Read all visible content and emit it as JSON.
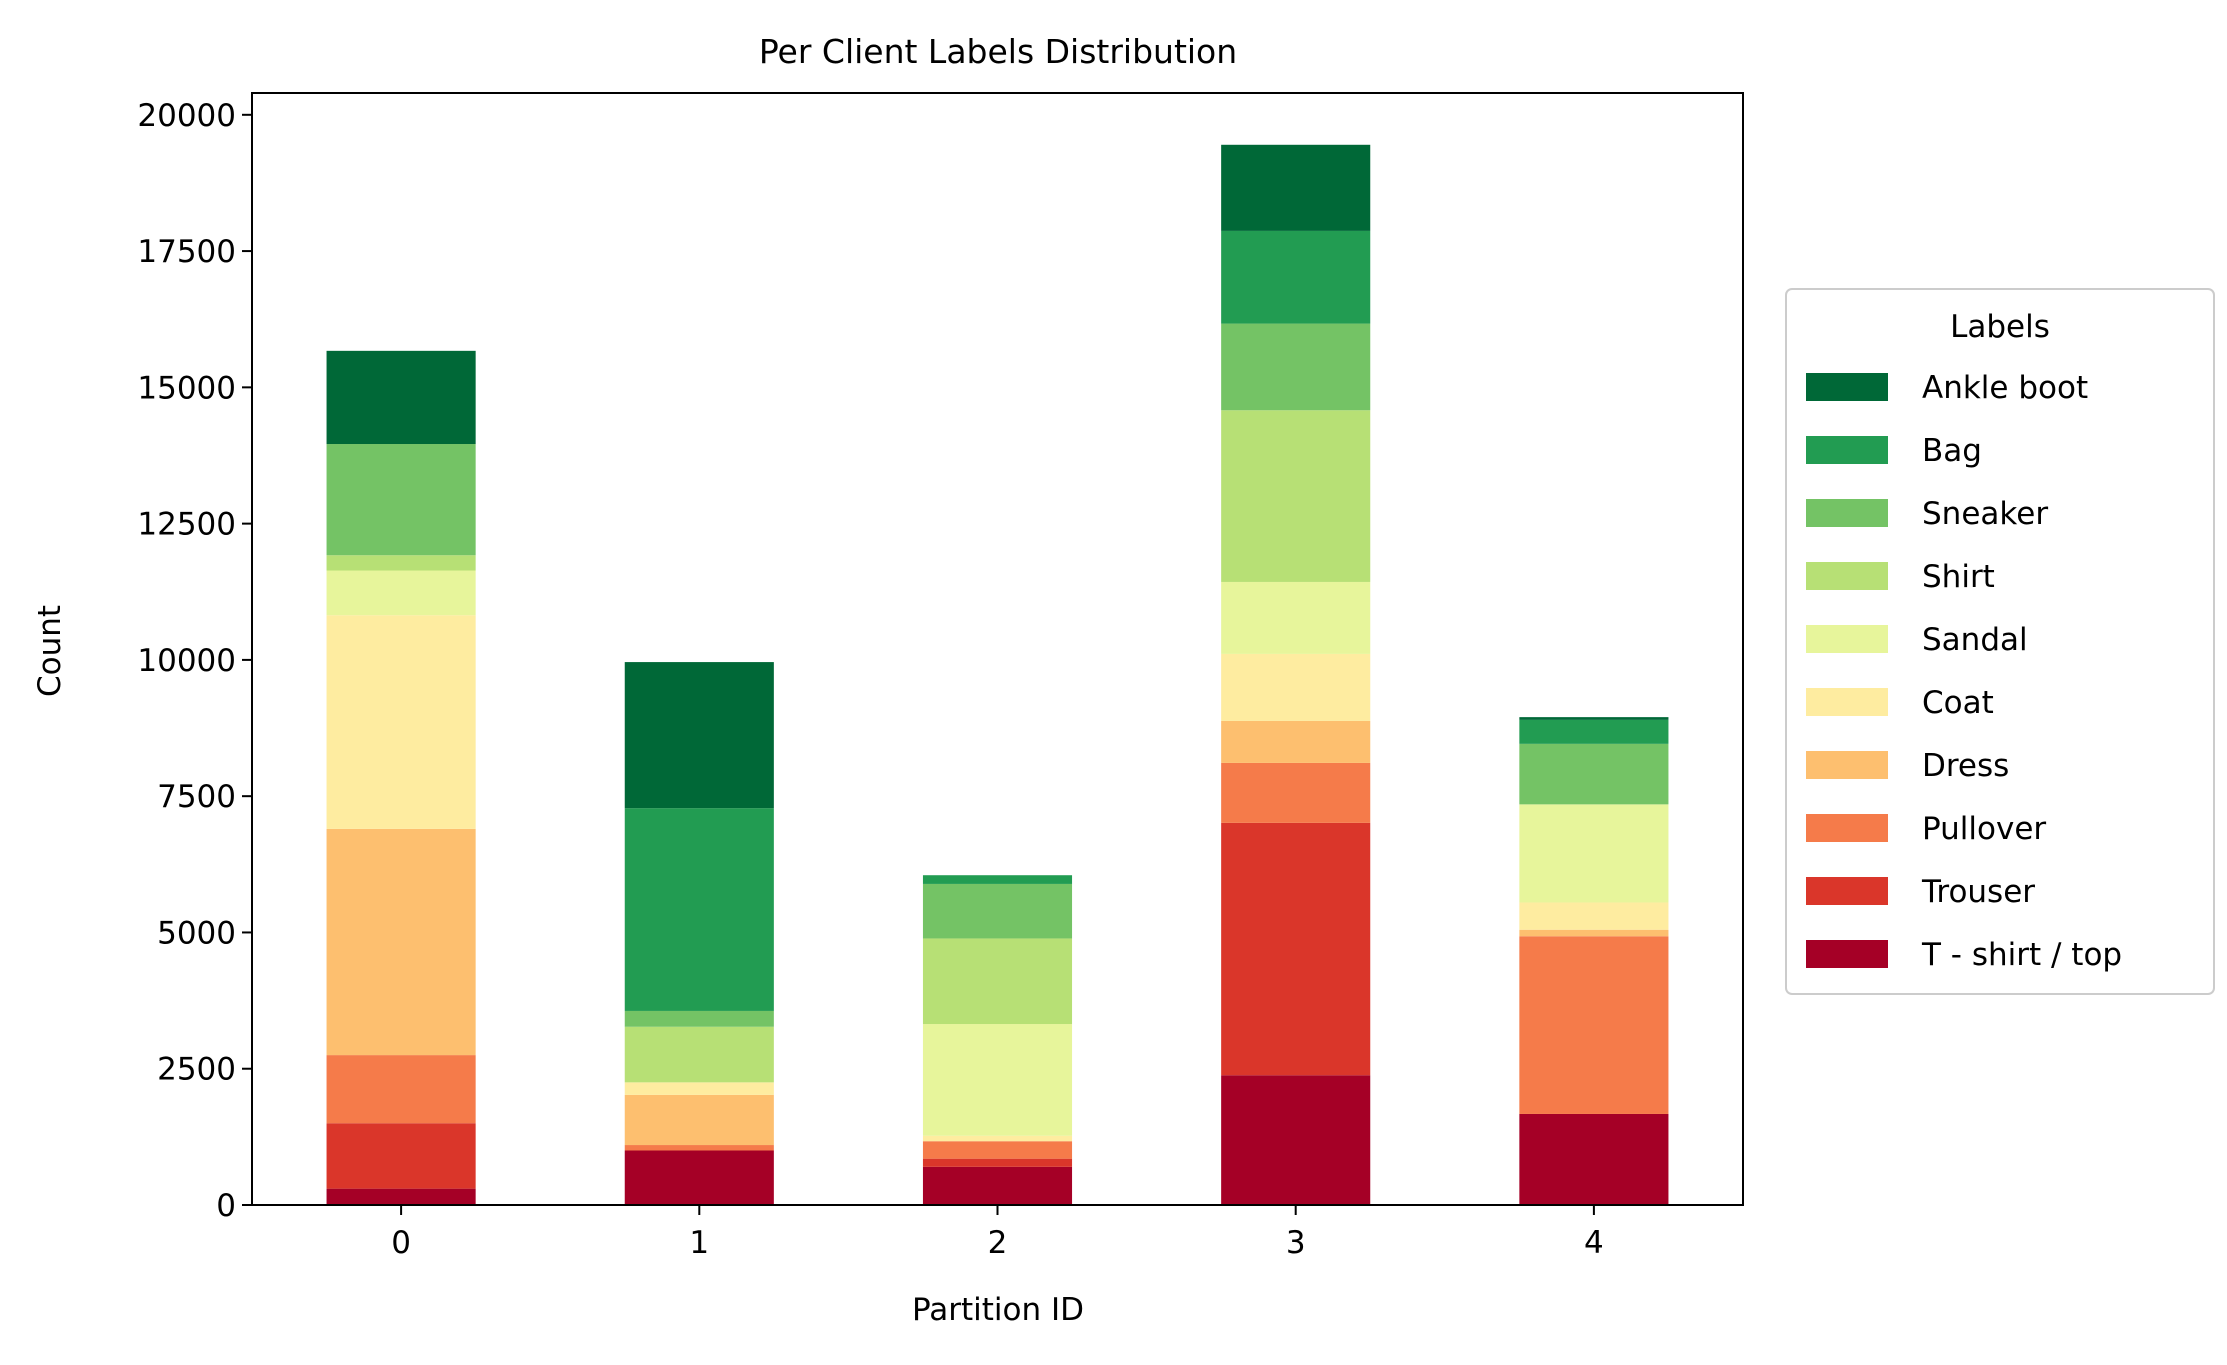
{
  "chart_data": {
    "type": "bar",
    "stacked": true,
    "title": "Per Client Labels Distribution",
    "xlabel": "Partition ID",
    "ylabel": "Count",
    "categories": [
      "0",
      "1",
      "2",
      "3",
      "4"
    ],
    "ylim": [
      0,
      20400
    ],
    "yticks": [
      0,
      2500,
      5000,
      7500,
      10000,
      12500,
      15000,
      17500,
      20000
    ],
    "ytick_labels": [
      "0",
      "2500",
      "5000",
      "7500",
      "10000",
      "12500",
      "15000",
      "17500",
      "20000"
    ],
    "grid": false,
    "legend": {
      "title": "Labels",
      "placement": "center-right-outside"
    },
    "series": [
      {
        "name": "T - shirt / top",
        "color": "#a50026",
        "values": [
          300,
          1000,
          700,
          2380,
          1670
        ]
      },
      {
        "name": "Trouser",
        "color": "#da362a",
        "values": [
          1200,
          0,
          150,
          4630,
          0
        ]
      },
      {
        "name": "Pullover",
        "color": "#f57b4a",
        "values": [
          1250,
          100,
          320,
          1100,
          3260
        ]
      },
      {
        "name": "Dress",
        "color": "#fdbf6f",
        "values": [
          4150,
          920,
          0,
          770,
          120
        ]
      },
      {
        "name": "Coat",
        "color": "#feeca0",
        "values": [
          3920,
          230,
          100,
          1230,
          500
        ]
      },
      {
        "name": "Sandal",
        "color": "#e7f59b",
        "values": [
          820,
          0,
          2050,
          1320,
          1800
        ]
      },
      {
        "name": "Shirt",
        "color": "#b7e075",
        "values": [
          280,
          1020,
          1570,
          3150,
          0
        ]
      },
      {
        "name": "Sneaker",
        "color": "#74c365",
        "values": [
          2040,
          290,
          1000,
          1590,
          1110
        ]
      },
      {
        "name": "Bag",
        "color": "#229c52",
        "values": [
          0,
          3720,
          160,
          1700,
          440
        ]
      },
      {
        "name": "Ankle boot",
        "color": "#006837",
        "values": [
          1710,
          2680,
          0,
          1580,
          50
        ]
      }
    ]
  }
}
